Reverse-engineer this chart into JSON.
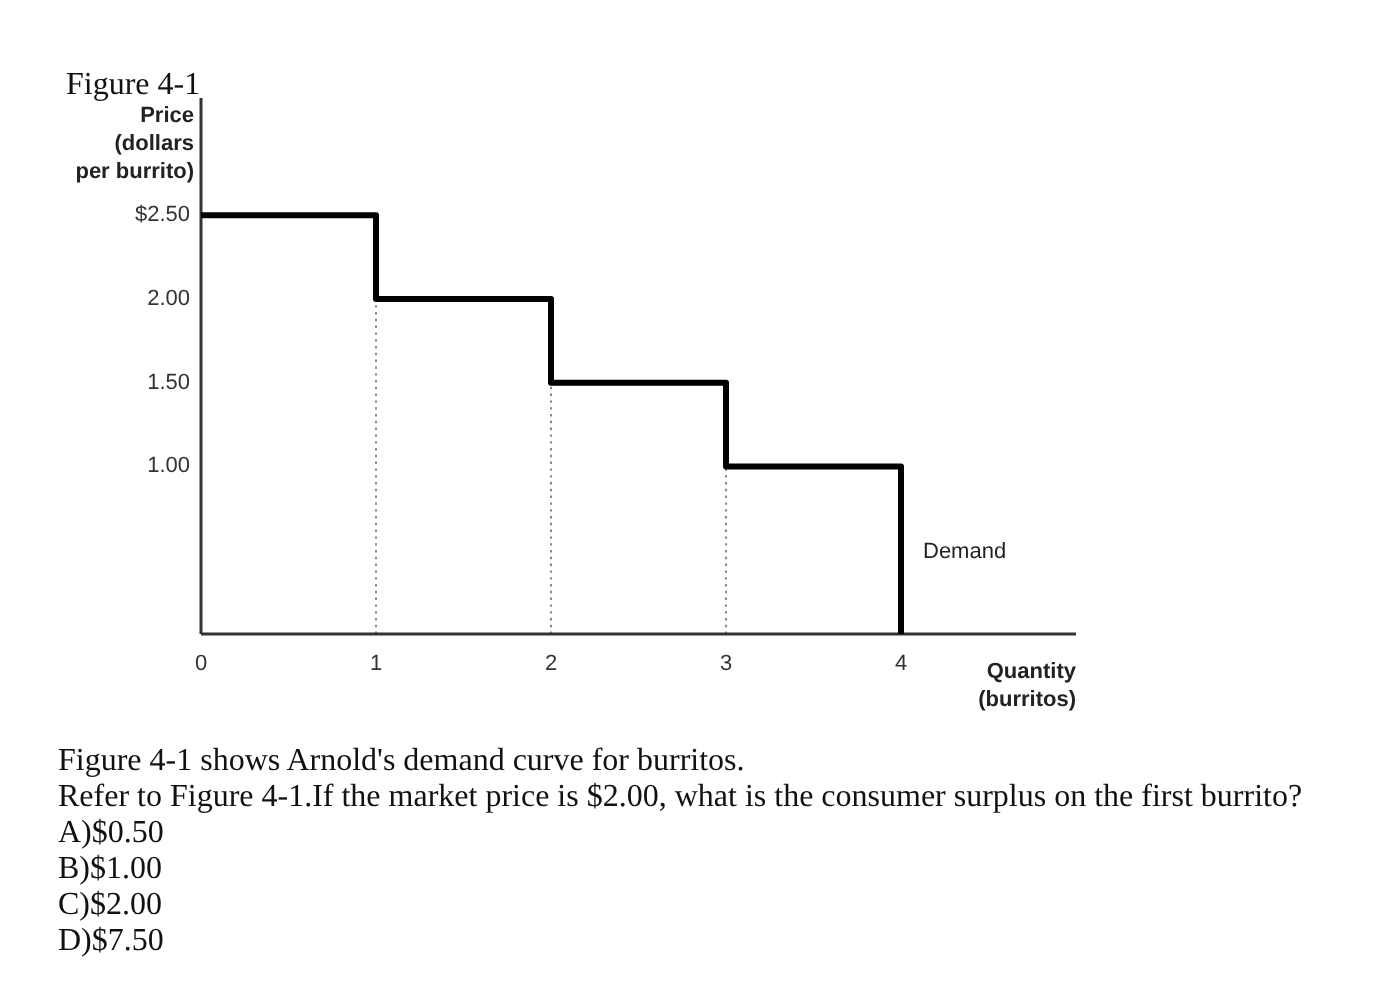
{
  "chart_data": {
    "type": "step",
    "title": "Figure 4-1",
    "xlabel": "Quantity\n(burritos)",
    "ylabel": "Price\n(dollars\nper burrito)",
    "x": [
      0,
      1,
      2,
      3,
      4
    ],
    "series": [
      {
        "name": "Demand",
        "color": "#000000",
        "values": [
          2.5,
          2,
          1.5,
          1,
          0
        ]
      }
    ],
    "xlim": [
      0,
      5
    ],
    "ylim": [
      0,
      3.2
    ],
    "xticks": [
      0,
      1,
      2,
      3,
      4
    ],
    "yticks": [
      {
        "value": 1,
        "label": "1.00"
      },
      {
        "value": 1.5,
        "label": "1.50"
      },
      {
        "value": 2,
        "label": "2.00"
      },
      {
        "value": 2.5,
        "label": "$2.50"
      }
    ],
    "ref_lines": [
      {
        "axis": "x",
        "value": 1,
        "line_style": "dotted",
        "color": "#888888"
      },
      {
        "axis": "x",
        "value": 2,
        "line_style": "dotted",
        "color": "#888888"
      },
      {
        "axis": "x",
        "value": 3,
        "line_style": "dotted",
        "color": "#888888"
      }
    ],
    "annotations": [
      "Figure 4-1 shows Arnold's demand curve for burritos.",
      "Refer to Figure 4-1.If the market price is $2.00, what is the consumer surplus on the first burrito?",
      "A)$0.50",
      "B)$1.00",
      "C)$2.00",
      "D)$7.50"
    ]
  }
}
